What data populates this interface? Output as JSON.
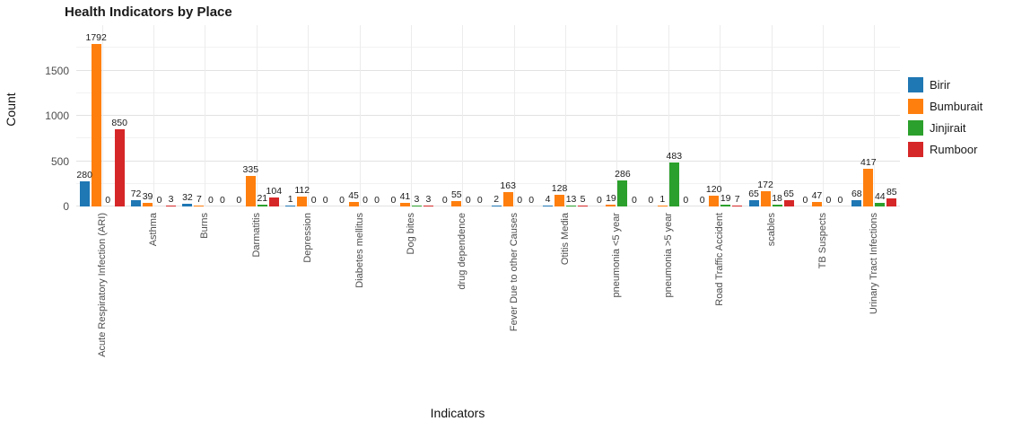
{
  "title": "Health Indicators by Place",
  "chart_data": {
    "type": "bar",
    "title": "Health Indicators by Place",
    "xlabel": "Indicators",
    "ylabel": "Count",
    "ylim": [
      0,
      2000
    ],
    "yticks": [
      0,
      500,
      1000,
      1500
    ],
    "yticks_minor": [
      250,
      750,
      1250,
      1750
    ],
    "grid": true,
    "legend_position": "right",
    "background": "#ffffff",
    "categories": [
      "Acute Respiratory Infection (ARI)",
      "Asthma",
      "Burns",
      "Darmatitis",
      "Depression",
      "Diabetes mellitus",
      "Dog bites",
      "drug dependence",
      "Fever Due to other Causes",
      "Otitis Media",
      "pneumonia <5 year",
      "pneumonia >5 year",
      "Road Traffic Accident",
      "scables",
      "TB Suspects",
      "Urinary Tract Infections"
    ],
    "series": [
      {
        "name": "Birir",
        "color": "#1f77b4",
        "values": [
          280,
          72,
          32,
          0,
          1,
          0,
          0,
          0,
          2,
          4,
          0,
          0,
          0,
          65,
          0,
          68
        ]
      },
      {
        "name": "Bumburait",
        "color": "#ff7f0e",
        "values": [
          1792,
          39,
          7,
          335,
          112,
          45,
          41,
          55,
          163,
          128,
          19,
          1,
          120,
          172,
          47,
          417
        ]
      },
      {
        "name": "Jinjirait",
        "color": "#2ca02c",
        "values": [
          0,
          0,
          0,
          21,
          0,
          0,
          3,
          0,
          0,
          13,
          286,
          483,
          19,
          18,
          0,
          44
        ]
      },
      {
        "name": "Rumboor",
        "color": "#d62728",
        "values": [
          850,
          3,
          0,
          104,
          0,
          0,
          3,
          0,
          0,
          5,
          0,
          0,
          7,
          65,
          0,
          85
        ]
      }
    ]
  }
}
